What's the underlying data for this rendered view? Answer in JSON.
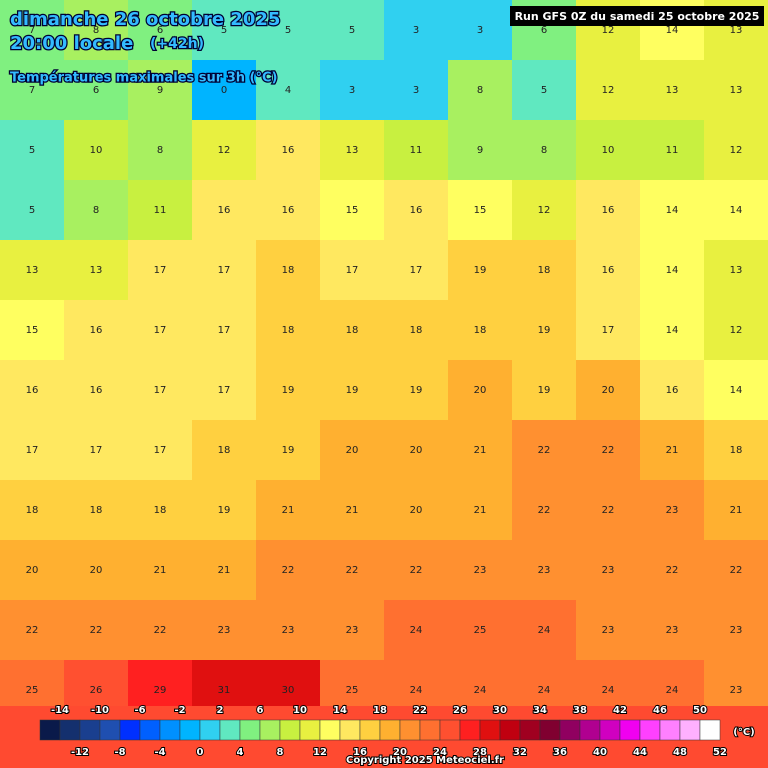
{
  "header": {
    "date": "dimanche 26 octobre 2025",
    "time": "20:00 locale",
    "lead": "(+42h)",
    "subtitle": "Températures maximales sur 3h (°C)",
    "run": "Run GFS 0Z du samedi 25 octobre 2025"
  },
  "grid": [
    [
      7,
      8,
      6,
      5,
      5,
      5,
      3,
      3,
      6,
      12,
      14,
      13
    ],
    [
      7,
      6,
      9,
      0,
      4,
      3,
      3,
      8,
      5,
      12,
      13,
      13
    ],
    [
      5,
      10,
      8,
      12,
      16,
      13,
      11,
      9,
      8,
      10,
      11,
      12
    ],
    [
      5,
      8,
      11,
      16,
      16,
      15,
      16,
      15,
      12,
      16,
      14,
      14
    ],
    [
      13,
      13,
      17,
      17,
      18,
      17,
      17,
      19,
      18,
      16,
      14,
      13
    ],
    [
      15,
      16,
      17,
      17,
      18,
      18,
      18,
      18,
      19,
      17,
      14,
      12
    ],
    [
      16,
      16,
      17,
      17,
      19,
      19,
      19,
      20,
      19,
      20,
      16,
      14
    ],
    [
      17,
      17,
      17,
      18,
      19,
      20,
      20,
      21,
      22,
      22,
      21,
      18
    ],
    [
      18,
      18,
      18,
      19,
      21,
      21,
      20,
      21,
      22,
      22,
      23,
      21
    ],
    [
      20,
      20,
      21,
      21,
      22,
      22,
      22,
      23,
      23,
      23,
      22,
      22
    ],
    [
      22,
      22,
      22,
      23,
      23,
      23,
      24,
      25,
      24,
      23,
      23,
      23
    ],
    [
      25,
      26,
      29,
      31,
      30,
      25,
      24,
      24,
      24,
      24,
      24,
      23
    ]
  ],
  "scale": {
    "unit": "(°C)",
    "values": [
      -14,
      -12,
      -10,
      -8,
      -6,
      -4,
      -2,
      0,
      2,
      4,
      6,
      8,
      10,
      12,
      14,
      16,
      18,
      20,
      22,
      24,
      26,
      28,
      30,
      32,
      34,
      36,
      38,
      40,
      42,
      44,
      46,
      48,
      50,
      52
    ],
    "colors": [
      "#0a1a4a",
      "#14306e",
      "#1a3f8f",
      "#1f4fb0",
      "#0030ff",
      "#0060ff",
      "#0090ff",
      "#00b4ff",
      "#30d0f0",
      "#60e8c0",
      "#80f080",
      "#a8f060",
      "#c8f040",
      "#e8f040",
      "#ffff60",
      "#ffe860",
      "#ffd040",
      "#ffb030",
      "#ff9030",
      "#ff7030",
      "#ff5030",
      "#ff2020",
      "#e01010",
      "#c00010",
      "#a00020",
      "#800030",
      "#900060",
      "#b00090",
      "#d000c0",
      "#f000f0",
      "#ff40ff",
      "#ff80ff",
      "#ffb0ff",
      "#ffffff"
    ]
  },
  "footer": {
    "copyright": "Copyright 2025 Meteociel.fr"
  }
}
